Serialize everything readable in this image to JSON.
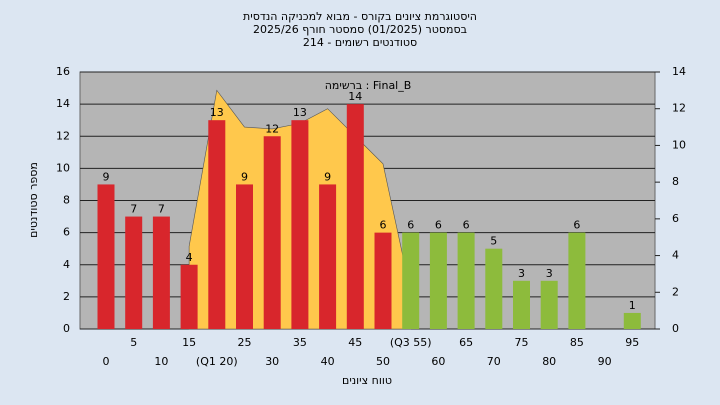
{
  "chart_data": {
    "type": "bar",
    "title": [
      "היסטוגרמת ציונים בקורס - מבוא למכניקה הנדסית",
      "בסמסטר (01/2025) סמסטר חורף 2025/26",
      "סטודנטים רשומים - 214"
    ],
    "annotation": "ברשימה : Final_B",
    "x_label": "טווח ציונים",
    "y_label": "מספר סטודנטים",
    "categories": [
      "0",
      "5",
      "10",
      "15",
      "(Q1 20)",
      "25",
      "30",
      "35",
      "40",
      "45",
      "50",
      "(Q3 55)",
      "60",
      "65",
      "70",
      "75",
      "80",
      "85",
      "90",
      "95"
    ],
    "values": [
      9,
      7,
      7,
      4,
      13,
      9,
      12,
      13,
      9,
      14,
      6,
      6,
      6,
      6,
      5,
      3,
      3,
      6,
      0,
      1
    ],
    "colors": [
      "#d8262c",
      "#d8262c",
      "#d8262c",
      "#d8262c",
      "#d8262c",
      "#d8262c",
      "#d8262c",
      "#d8262c",
      "#d8262c",
      "#d8262c",
      "#d8262c",
      "#8dbb3c",
      "#8dbb3c",
      "#8dbb3c",
      "#8dbb3c",
      "#8dbb3c",
      "#8dbb3c",
      "#8dbb3c",
      "#8dbb3c",
      "#8dbb3c"
    ],
    "area": {
      "axis": "y2",
      "color": "#ffc84c",
      "values": [
        null,
        null,
        null,
        4.5,
        13,
        11,
        10.9,
        11.2,
        12,
        10.5,
        9,
        2,
        null,
        null,
        null,
        null,
        null,
        null,
        null,
        null
      ]
    },
    "ylim": [
      0,
      16
    ],
    "yticks": [
      0,
      2,
      4,
      6,
      8,
      10,
      12,
      14,
      16
    ],
    "y2lim": [
      0,
      14
    ],
    "y2ticks": [
      0,
      2,
      4,
      6,
      8,
      10,
      12,
      14
    ],
    "grid": true
  }
}
